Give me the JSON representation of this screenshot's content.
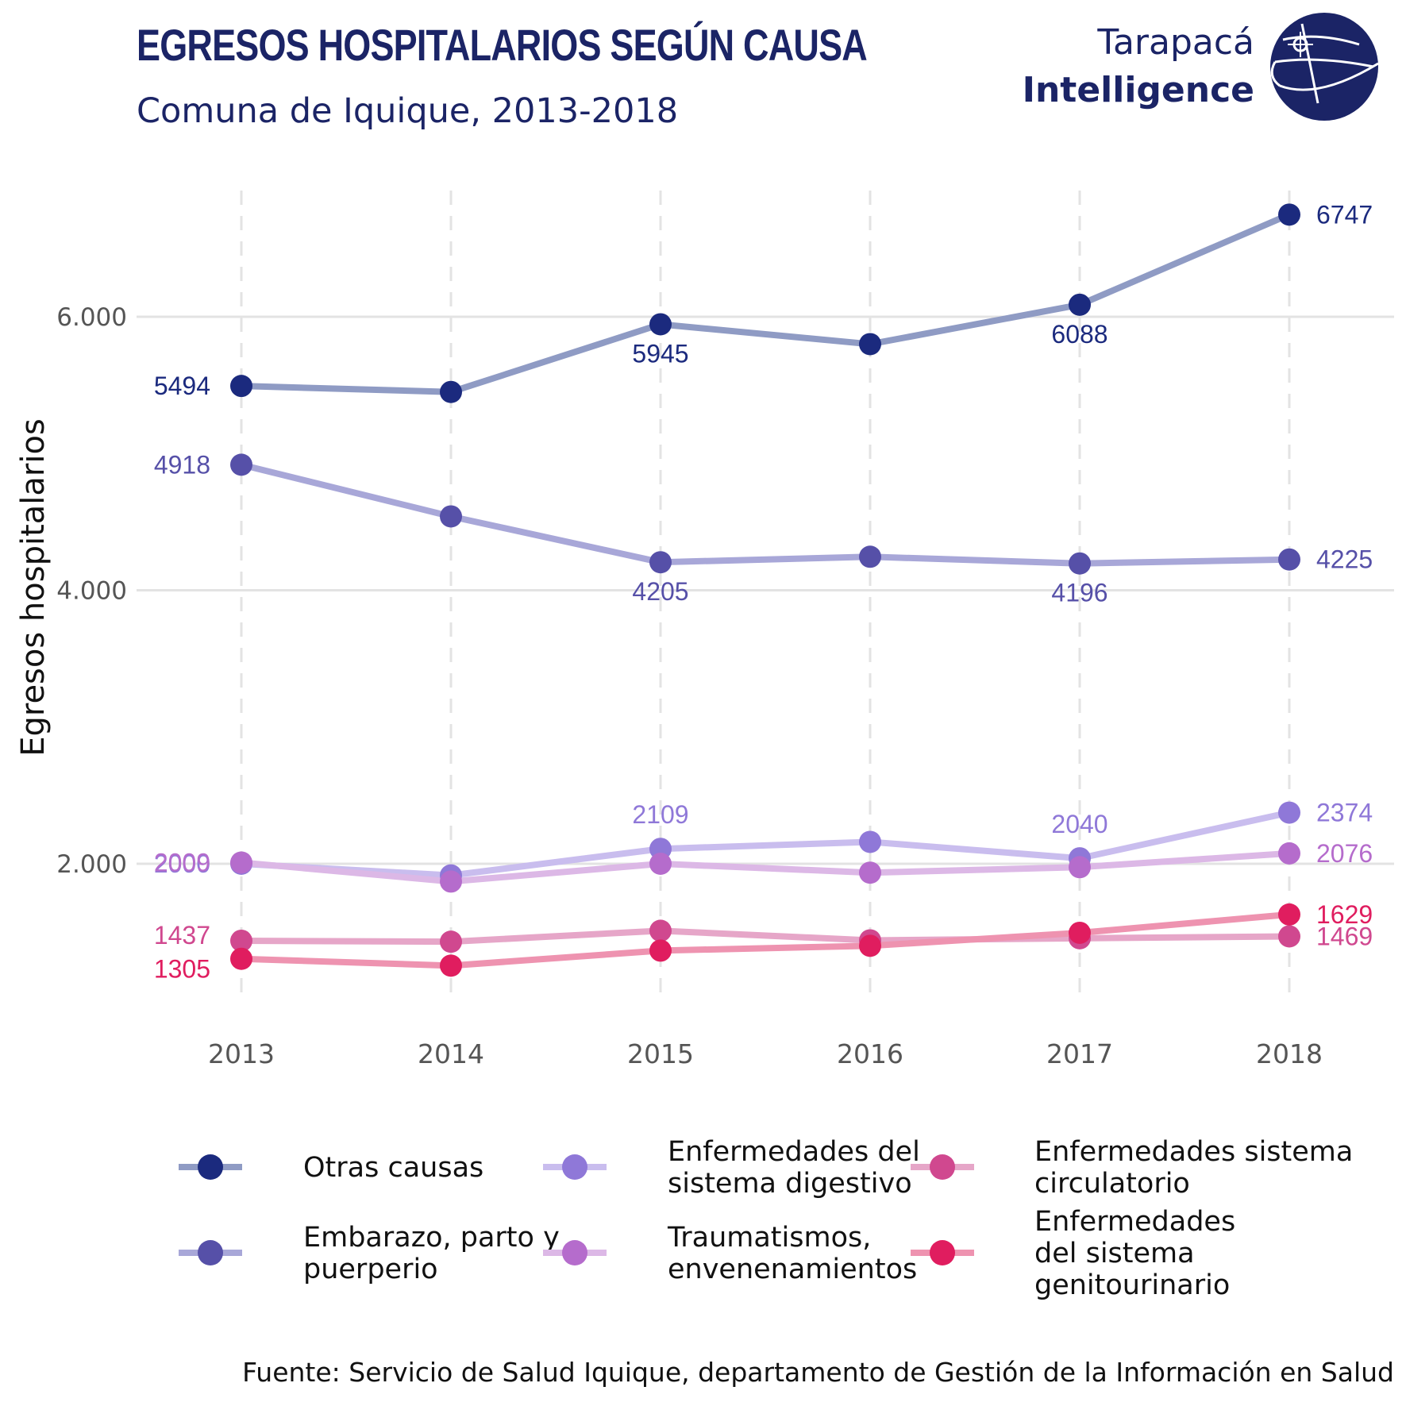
{
  "chart_data": {
    "type": "line",
    "title": "EGRESOS HOSPITALARIOS SEGÚN CAUSA",
    "subtitle": "Comuna de Iquique, 2013-2018",
    "ylabel": "Egresos hospitalarios",
    "xlabel": "",
    "x": [
      "2013",
      "2014",
      "2015",
      "2016",
      "2017",
      "2018"
    ],
    "ylim": [
      800,
      7150
    ],
    "yticks": [
      2000,
      4000,
      6000
    ],
    "ytick_labels": [
      "2.000",
      "4.000",
      "6.000"
    ],
    "grid": true,
    "legend_position": "bottom",
    "series": [
      {
        "name": "Otras causas",
        "values": [
          5494,
          5450,
          5945,
          5800,
          6088,
          6747
        ],
        "labels": [
          "5494",
          "",
          "5945",
          "",
          "6088",
          "6747"
        ],
        "color": "#1b2a7e",
        "line_color": "#8f9bc4"
      },
      {
        "name": "Embarazo, parto y puerperio",
        "values": [
          4918,
          4540,
          4205,
          4245,
          4196,
          4225
        ],
        "labels": [
          "4918",
          "",
          "4205",
          "",
          "4196",
          "4225"
        ],
        "color": "#5650a8",
        "line_color": "#a8a7d8"
      },
      {
        "name": "Enfermedades del sistema digestivo",
        "values": [
          2000,
          1915,
          2109,
          2160,
          2040,
          2374
        ],
        "labels": [
          "2000",
          "",
          "2109",
          "",
          "2040",
          "2374"
        ],
        "color": "#8f78d8",
        "line_color": "#c9bdee"
      },
      {
        "name": "Traumatismos, envenenamientos",
        "values": [
          2009,
          1870,
          2000,
          1935,
          1975,
          2076
        ],
        "labels": [
          "2009",
          "",
          "",
          "",
          "",
          "2076"
        ],
        "color": "#b56ccc",
        "line_color": "#dcb8e6"
      },
      {
        "name": "Enfermedades sistema circulatorio",
        "values": [
          1437,
          1430,
          1510,
          1440,
          1455,
          1469
        ],
        "labels": [
          "1437",
          "",
          "",
          "",
          "",
          "1469"
        ],
        "color": "#d0488f",
        "line_color": "#e6a6c8"
      },
      {
        "name": "Enfermedades del sistema genitourinario",
        "values": [
          1305,
          1255,
          1365,
          1400,
          1495,
          1629
        ],
        "labels": [
          "1305",
          "",
          "",
          "",
          "",
          "1629"
        ],
        "color": "#e01d5f",
        "line_color": "#ee93b0"
      }
    ],
    "legend": [
      [
        "Otras causas"
      ],
      [
        "Embarazo, parto y",
        "puerperio"
      ],
      [
        "Enfermedades del",
        "sistema digestivo"
      ],
      [
        "Traumatismos,",
        "envenenamientos"
      ],
      [
        "Enfermedades sistema",
        "circulatorio"
      ],
      [
        "Enfermedades",
        "del sistema",
        "genitourinario"
      ]
    ],
    "caption": "Fuente: Servicio de Salud Iquique, departamento de Gestión de la Información en Salud"
  },
  "logo": {
    "line1": "Tarapacá",
    "line2": "Intelligence"
  }
}
